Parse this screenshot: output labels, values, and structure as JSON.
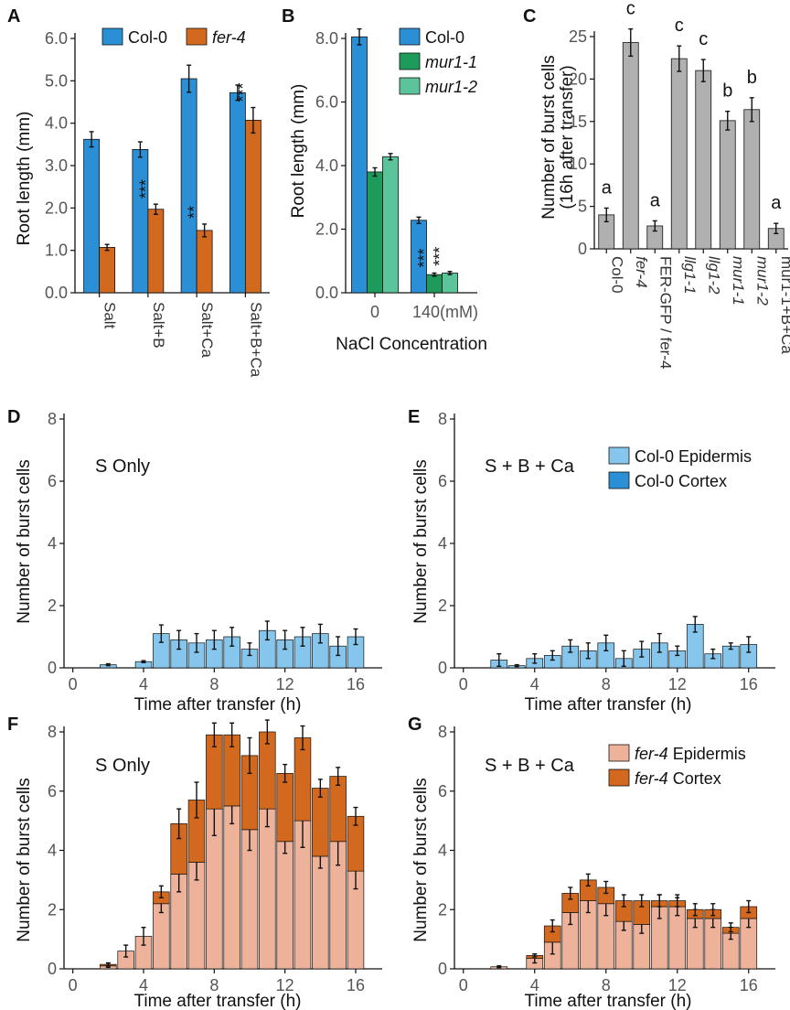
{
  "colors": {
    "col0": "#2b8fd6",
    "fer4": "#d2691e",
    "mur1_1": "#1e9b5a",
    "mur1_2": "#5cc49a",
    "gray": "#b0b0b0",
    "col0_epi": "#86c5ec",
    "col0_cor": "#2b8fd6",
    "fer4_epi": "#eeb29b",
    "fer4_cor": "#d2691e",
    "error": "#111111"
  },
  "chart_data": [
    {
      "panel": "A",
      "type": "bar",
      "ylabel": "Root length (mm)",
      "ylim": [
        0,
        6.0
      ],
      "yticks": [
        "0.0",
        "1.0",
        "2.0",
        "3.0",
        "4.0",
        "5.0",
        "6.0"
      ],
      "categories": [
        "Salt",
        "Salt+B",
        "Salt+Ca",
        "Salt+B+Ca"
      ],
      "legend": [
        "Col-0",
        "fer-4"
      ],
      "series": [
        {
          "name": "Col-0",
          "values": [
            3.62,
            3.38,
            5.05,
            4.72
          ],
          "errors": [
            0.18,
            0.18,
            0.32,
            0.18
          ]
        },
        {
          "name": "fer-4",
          "values": [
            1.07,
            1.97,
            1.47,
            4.07
          ],
          "errors": [
            0.07,
            0.12,
            0.15,
            0.3
          ]
        }
      ],
      "annotations": [
        {
          "category": "Salt+B",
          "series": "fer-4",
          "text": "***"
        },
        {
          "category": "Salt+Ca",
          "series": "fer-4",
          "text": "**"
        },
        {
          "category": "Salt+B+Ca",
          "series": "fer-4",
          "text": "***"
        }
      ]
    },
    {
      "panel": "B",
      "type": "bar",
      "ylabel": "Root length (mm)",
      "xlabel": "NaCl Concentration",
      "ylim": [
        0,
        8.0
      ],
      "yticks": [
        "0.0",
        "2.0",
        "4.0",
        "6.0",
        "8.0"
      ],
      "categories": [
        "0",
        "140(mM)"
      ],
      "legend": [
        "Col-0",
        "mur1-1",
        "mur1-2"
      ],
      "series": [
        {
          "name": "Col-0",
          "values": [
            8.05,
            2.28
          ],
          "errors": [
            0.25,
            0.1
          ]
        },
        {
          "name": "mur1-1",
          "values": [
            3.8,
            0.57
          ],
          "errors": [
            0.13,
            0.05
          ]
        },
        {
          "name": "mur1-2",
          "values": [
            4.28,
            0.62
          ],
          "errors": [
            0.1,
            0.05
          ]
        }
      ],
      "annotations": [
        {
          "category": "140(mM)",
          "series": "mur1-1",
          "text": "***"
        },
        {
          "category": "140(mM)",
          "series": "mur1-2",
          "text": "***"
        }
      ]
    },
    {
      "panel": "C",
      "type": "bar",
      "ylabel": "Number of burst cells",
      "ylabel2": "(16h after transfer)",
      "ylim": [
        0,
        25
      ],
      "yticks": [
        "0",
        "5",
        "10",
        "15",
        "20",
        "25"
      ],
      "categories": [
        "Col-0",
        "fer-4",
        "FER-GFP / fer-4",
        "llg1-1",
        "llg1-2",
        "mur1-1",
        "mur1-2",
        "mur1-1+B+Ca"
      ],
      "values": [
        4.0,
        24.3,
        2.7,
        22.4,
        21.0,
        15.1,
        16.4,
        2.4
      ],
      "errors": [
        0.8,
        1.6,
        0.6,
        1.5,
        1.3,
        1.1,
        1.4,
        0.6
      ],
      "letters": [
        "a",
        "c",
        "a",
        "c",
        "c",
        "b",
        "b",
        "a"
      ]
    },
    {
      "panel": "D",
      "type": "bar",
      "inset_label": "S Only",
      "xlabel": "Time after transfer (h)",
      "ylabel": "Number of burst cells",
      "ylim": [
        0,
        8
      ],
      "yticks": [
        "0",
        "2",
        "4",
        "6",
        "8"
      ],
      "x": [
        1,
        2,
        3,
        4,
        5,
        6,
        7,
        8,
        9,
        10,
        11,
        12,
        13,
        14,
        15,
        16
      ],
      "xticks": [
        "0",
        "4",
        "8",
        "12",
        "16"
      ],
      "series": [
        {
          "name": "Col-0 Epidermis",
          "values": [
            0,
            0.1,
            0,
            0.2,
            1.1,
            0.9,
            0.8,
            0.9,
            1.0,
            0.6,
            1.2,
            0.9,
            1.0,
            1.1,
            0.7,
            1.0
          ],
          "errors": [
            0,
            0.03,
            0,
            0.03,
            0.28,
            0.3,
            0.3,
            0.3,
            0.3,
            0.2,
            0.3,
            0.3,
            0.3,
            0.3,
            0.3,
            0.25
          ]
        }
      ]
    },
    {
      "panel": "E",
      "type": "bar",
      "inset_label": "S + B + Ca",
      "xlabel": "Time after transfer (h)",
      "ylabel": "Number of burst cells",
      "ylim": [
        0,
        8
      ],
      "yticks": [
        "0",
        "2",
        "4",
        "6",
        "8"
      ],
      "x": [
        1,
        2,
        3,
        4,
        5,
        6,
        7,
        8,
        9,
        10,
        11,
        12,
        13,
        14,
        15,
        16
      ],
      "xticks": [
        "0",
        "4",
        "8",
        "12",
        "16"
      ],
      "legend": [
        "Col-0 Epidermis",
        "Col-0 Cortex"
      ],
      "series": [
        {
          "name": "Col-0 Epidermis",
          "values": [
            0,
            0.25,
            0.07,
            0.3,
            0.4,
            0.7,
            0.55,
            0.8,
            0.3,
            0.6,
            0.8,
            0.55,
            1.4,
            0.45,
            0.7,
            0.75
          ],
          "errors": [
            0,
            0.2,
            0.03,
            0.15,
            0.15,
            0.2,
            0.25,
            0.25,
            0.25,
            0.25,
            0.3,
            0.15,
            0.25,
            0.15,
            0.1,
            0.25
          ]
        },
        {
          "name": "Col-0 Cortex",
          "values": [
            0,
            0,
            0,
            0,
            0,
            0,
            0,
            0,
            0,
            0,
            0,
            0,
            0,
            0,
            0,
            0
          ],
          "errors": [
            0,
            0,
            0,
            0,
            0,
            0,
            0,
            0,
            0,
            0,
            0,
            0,
            0,
            0,
            0,
            0
          ]
        }
      ]
    },
    {
      "panel": "F",
      "type": "bar",
      "inset_label": "S Only",
      "xlabel": "Time after transfer (h)",
      "ylabel": "Number of burst cells",
      "ylim": [
        0,
        8
      ],
      "yticks": [
        "0",
        "2",
        "4",
        "6",
        "8"
      ],
      "x": [
        1,
        2,
        3,
        4,
        5,
        6,
        7,
        8,
        9,
        10,
        11,
        12,
        13,
        14,
        15,
        16
      ],
      "xticks": [
        "0",
        "4",
        "8",
        "12",
        "16"
      ],
      "series": [
        {
          "name": "fer-4 Epidermis",
          "values": [
            0,
            0.1,
            0.6,
            1.1,
            2.2,
            3.2,
            3.6,
            5.4,
            5.5,
            4.7,
            5.4,
            4.3,
            5.0,
            3.8,
            4.3,
            3.3
          ],
          "errors": [
            0,
            0.05,
            0.2,
            0.3,
            0.3,
            0.6,
            0.6,
            0.9,
            0.6,
            0.7,
            0.6,
            0.4,
            0.9,
            0.4,
            0.8,
            0.6
          ]
        },
        {
          "name": "fer-4 Cortex",
          "values": [
            0,
            0.05,
            0,
            0,
            0.4,
            1.7,
            2.1,
            2.5,
            2.4,
            2.5,
            2.6,
            2.3,
            2.8,
            2.3,
            2.2,
            1.85
          ],
          "errors": [
            0,
            0.05,
            0,
            0,
            0.2,
            0.5,
            0.6,
            0.4,
            0.4,
            0.6,
            0.4,
            0.3,
            0.4,
            0.3,
            0.3,
            0.3
          ]
        }
      ]
    },
    {
      "panel": "G",
      "type": "bar",
      "inset_label": "S + B + Ca",
      "xlabel": "Time after transfer (h)",
      "ylabel": "Number of burst cells",
      "ylim": [
        0,
        8
      ],
      "yticks": [
        "0",
        "2",
        "4",
        "6",
        "8"
      ],
      "x": [
        1,
        2,
        3,
        4,
        5,
        6,
        7,
        8,
        9,
        10,
        11,
        12,
        13,
        14,
        15,
        16
      ],
      "xticks": [
        "0",
        "4",
        "8",
        "12",
        "16"
      ],
      "legend": [
        "fer-4 Epidermis",
        "fer-4 Cortex"
      ],
      "series": [
        {
          "name": "fer-4 Epidermis",
          "values": [
            0,
            0.07,
            0,
            0.35,
            0.9,
            1.9,
            2.3,
            2.2,
            1.6,
            1.5,
            2.1,
            2.1,
            1.7,
            1.7,
            1.2,
            1.7
          ],
          "errors": [
            0,
            0.03,
            0,
            0.15,
            0.4,
            0.4,
            0.4,
            0.4,
            0.3,
            0.3,
            0.4,
            0.3,
            0.3,
            0.3,
            0.2,
            0.3
          ]
        },
        {
          "name": "fer-4 Cortex",
          "values": [
            0,
            0,
            0,
            0.1,
            0.55,
            0.65,
            0.7,
            0.55,
            0.7,
            0.8,
            0.2,
            0.2,
            0.3,
            0.3,
            0.2,
            0.4
          ],
          "errors": [
            0,
            0,
            0,
            0.05,
            0.2,
            0.2,
            0.2,
            0.2,
            0.2,
            0.2,
            0.2,
            0.2,
            0.2,
            0.2,
            0.15,
            0.2
          ]
        }
      ]
    }
  ]
}
